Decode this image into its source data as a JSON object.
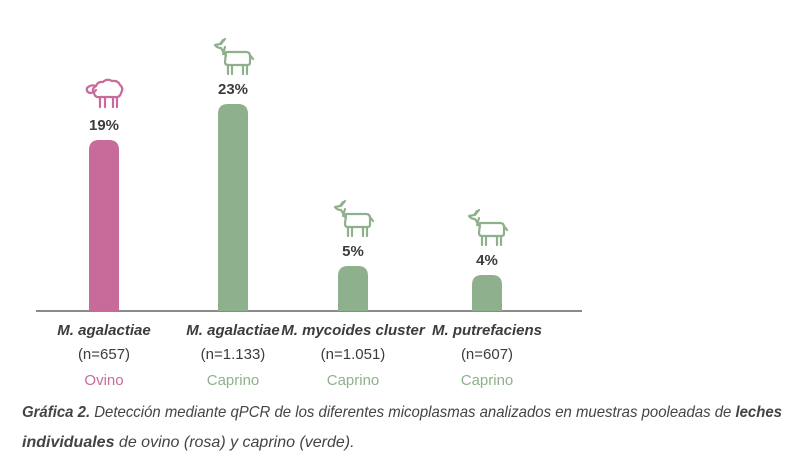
{
  "chart_data": {
    "type": "bar",
    "categories": [
      "M. agalactiae",
      "M. agalactiae",
      "M. mycoides cluster",
      "M. putrefaciens"
    ],
    "sample_sizes": [
      "(n=657)",
      "(n=1.133)",
      "(n=1.051)",
      "(n=607)"
    ],
    "species": [
      "Ovino",
      "Caprino",
      "Caprino",
      "Caprino"
    ],
    "colors": [
      "#c76b9b",
      "#8fb08c",
      "#8fb08c",
      "#8fb08c"
    ],
    "values": [
      19,
      23,
      5,
      4
    ],
    "value_labels": [
      "19%",
      "23%",
      "5%",
      "4%"
    ]
  },
  "caption": {
    "label": "Gráfica 2.",
    "text": "Detección mediante qPCR de los diferentes micoplasmas analizados en muestras pooleadas de",
    "bold_1": "leches",
    "bold_2": "individuales",
    "end": "de ovino (rosa) y caprino (verde)."
  }
}
